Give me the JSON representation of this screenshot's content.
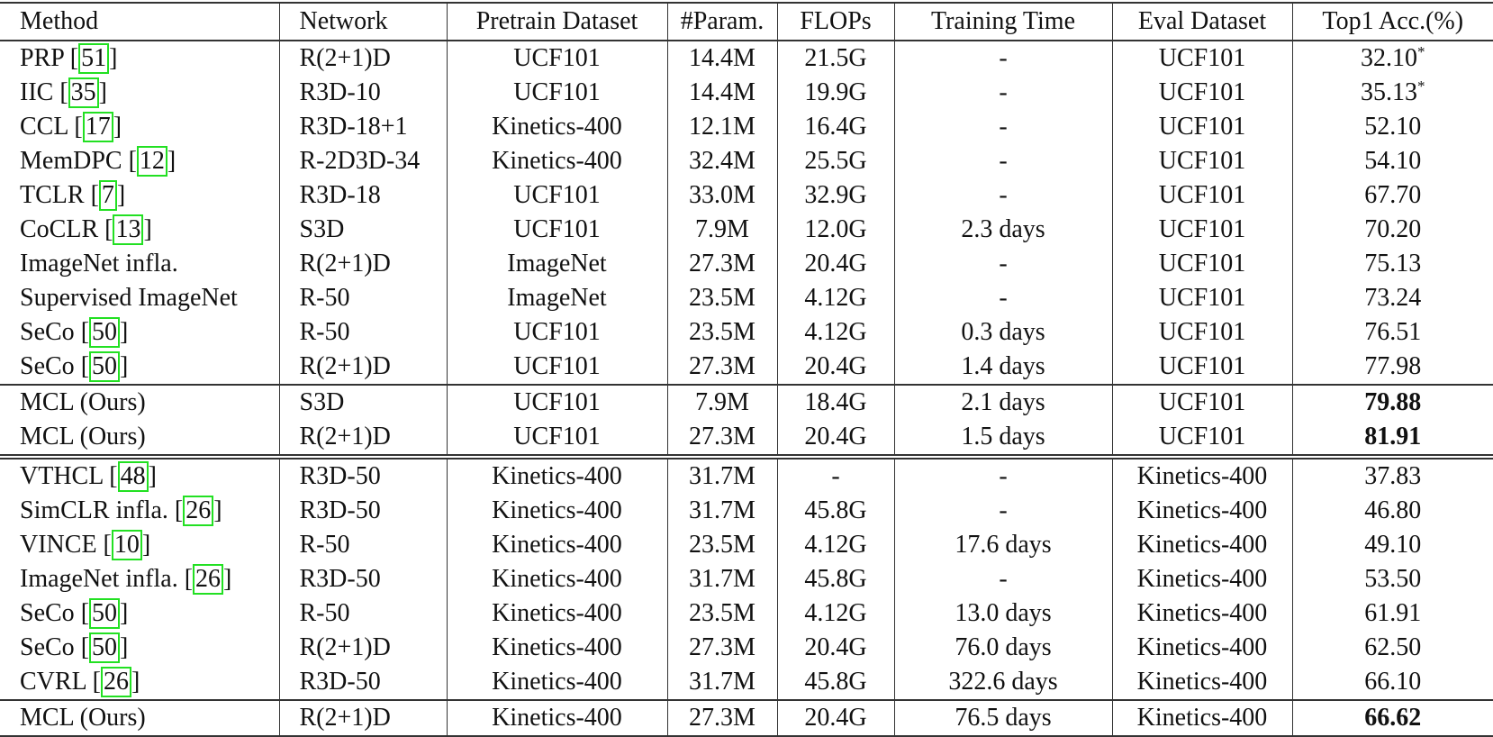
{
  "table": {
    "headers": [
      "Method",
      "Network",
      "Pretrain Dataset",
      "#Param.",
      "FLOPs",
      "Training Time",
      "Eval Dataset",
      "Top1 Acc.(%)"
    ],
    "groups": [
      {
        "name": "ucf101-baselines",
        "rows": [
          {
            "method": "PRP",
            "cite": "51",
            "network": "R(2+1)D",
            "pretrain": "UCF101",
            "params": "14.4M",
            "flops": "21.5G",
            "time": "-",
            "eval": "UCF101",
            "acc": "32.10",
            "mark": "*",
            "bold": false
          },
          {
            "method": "IIC",
            "cite": "35",
            "network": "R3D-10",
            "pretrain": "UCF101",
            "params": "14.4M",
            "flops": "19.9G",
            "time": "-",
            "eval": "UCF101",
            "acc": "35.13",
            "mark": "*",
            "bold": false
          },
          {
            "method": "CCL",
            "cite": "17",
            "network": "R3D-18+1",
            "pretrain": "Kinetics-400",
            "params": "12.1M",
            "flops": "16.4G",
            "time": "-",
            "eval": "UCF101",
            "acc": "52.10",
            "mark": "",
            "bold": false
          },
          {
            "method": "MemDPC",
            "cite": "12",
            "network": "R-2D3D-34",
            "pretrain": "Kinetics-400",
            "params": "32.4M",
            "flops": "25.5G",
            "time": "-",
            "eval": "UCF101",
            "acc": "54.10",
            "mark": "",
            "bold": false
          },
          {
            "method": "TCLR",
            "cite": "7",
            "network": "R3D-18",
            "pretrain": "UCF101",
            "params": "33.0M",
            "flops": "32.9G",
            "time": "-",
            "eval": "UCF101",
            "acc": "67.70",
            "mark": "",
            "bold": false
          },
          {
            "method": "CoCLR",
            "cite": "13",
            "network": "S3D",
            "pretrain": "UCF101",
            "params": "7.9M",
            "flops": "12.0G",
            "time": "2.3 days",
            "eval": "UCF101",
            "acc": "70.20",
            "mark": "",
            "bold": false
          },
          {
            "method": "ImageNet infla.",
            "cite": "",
            "network": "R(2+1)D",
            "pretrain": "ImageNet",
            "params": "27.3M",
            "flops": "20.4G",
            "time": "-",
            "eval": "UCF101",
            "acc": "75.13",
            "mark": "",
            "bold": false
          },
          {
            "method": "Supervised ImageNet",
            "cite": "",
            "network": "R-50",
            "pretrain": "ImageNet",
            "params": "23.5M",
            "flops": "4.12G",
            "time": "-",
            "eval": "UCF101",
            "acc": "73.24",
            "mark": "",
            "bold": false
          },
          {
            "method": "SeCo",
            "cite": "50",
            "network": "R-50",
            "pretrain": "UCF101",
            "params": "23.5M",
            "flops": "4.12G",
            "time": "0.3 days",
            "eval": "UCF101",
            "acc": "76.51",
            "mark": "",
            "bold": false
          },
          {
            "method": "SeCo",
            "cite": "50",
            "network": "R(2+1)D",
            "pretrain": "UCF101",
            "params": "27.3M",
            "flops": "20.4G",
            "time": "1.4 days",
            "eval": "UCF101",
            "acc": "77.98",
            "mark": "",
            "bold": false
          }
        ]
      },
      {
        "name": "ucf101-ours",
        "rows": [
          {
            "method": "MCL (Ours)",
            "cite": "",
            "network": "S3D",
            "pretrain": "UCF101",
            "params": "7.9M",
            "flops": "18.4G",
            "time": "2.1 days",
            "eval": "UCF101",
            "acc": "79.88",
            "mark": "",
            "bold": true
          },
          {
            "method": "MCL (Ours)",
            "cite": "",
            "network": "R(2+1)D",
            "pretrain": "UCF101",
            "params": "27.3M",
            "flops": "20.4G",
            "time": "1.5 days",
            "eval": "UCF101",
            "acc": "81.91",
            "mark": "",
            "bold": true
          }
        ]
      },
      {
        "name": "kinetics-baselines",
        "rows": [
          {
            "method": "VTHCL",
            "cite": "48",
            "network": "R3D-50",
            "pretrain": "Kinetics-400",
            "params": "31.7M",
            "flops": "-",
            "time": "-",
            "eval": "Kinetics-400",
            "acc": "37.83",
            "mark": "",
            "bold": false
          },
          {
            "method": "SimCLR infla.",
            "cite": "26",
            "network": "R3D-50",
            "pretrain": "Kinetics-400",
            "params": "31.7M",
            "flops": "45.8G",
            "time": "-",
            "eval": "Kinetics-400",
            "acc": "46.80",
            "mark": "",
            "bold": false
          },
          {
            "method": "VINCE",
            "cite": "10",
            "network": "R-50",
            "pretrain": "Kinetics-400",
            "params": "23.5M",
            "flops": "4.12G",
            "time": "17.6 days",
            "eval": "Kinetics-400",
            "acc": "49.10",
            "mark": "",
            "bold": false
          },
          {
            "method": "ImageNet infla.",
            "cite": "26",
            "network": "R3D-50",
            "pretrain": "Kinetics-400",
            "params": "31.7M",
            "flops": "45.8G",
            "time": "-",
            "eval": "Kinetics-400",
            "acc": "53.50",
            "mark": "",
            "bold": false
          },
          {
            "method": "SeCo",
            "cite": "50",
            "network": "R-50",
            "pretrain": "Kinetics-400",
            "params": "23.5M",
            "flops": "4.12G",
            "time": "13.0 days",
            "eval": "Kinetics-400",
            "acc": "61.91",
            "mark": "",
            "bold": false
          },
          {
            "method": "SeCo",
            "cite": "50",
            "network": "R(2+1)D",
            "pretrain": "Kinetics-400",
            "params": "27.3M",
            "flops": "20.4G",
            "time": "76.0 days",
            "eval": "Kinetics-400",
            "acc": "62.50",
            "mark": "",
            "bold": false
          },
          {
            "method": "CVRL",
            "cite": "26",
            "network": "R3D-50",
            "pretrain": "Kinetics-400",
            "params": "31.7M",
            "flops": "45.8G",
            "time": "322.6 days",
            "eval": "Kinetics-400",
            "acc": "66.10",
            "mark": "",
            "bold": false
          }
        ]
      },
      {
        "name": "kinetics-ours",
        "rows": [
          {
            "method": "MCL (Ours)",
            "cite": "",
            "network": "R(2+1)D",
            "pretrain": "Kinetics-400",
            "params": "27.3M",
            "flops": "20.4G",
            "time": "76.5 days",
            "eval": "Kinetics-400",
            "acc": "66.62",
            "mark": "",
            "bold": true
          }
        ]
      }
    ],
    "colors": {
      "citation_box": "#22e022",
      "rule": "#333333",
      "text": "#111111"
    }
  }
}
